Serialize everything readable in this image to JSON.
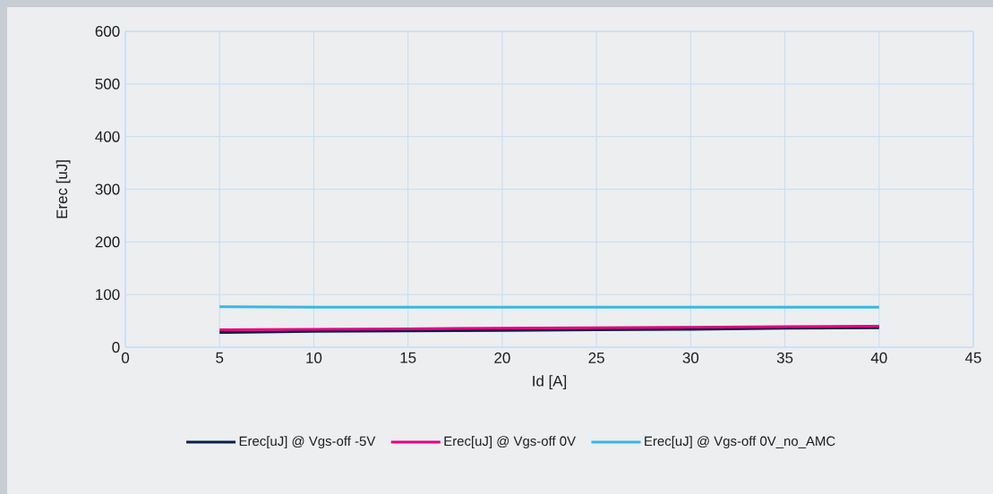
{
  "chart_data": {
    "type": "line",
    "xlabel": "Id [A]",
    "ylabel": "Erec [uJ]",
    "x": [
      5,
      10,
      15,
      20,
      25,
      30,
      35,
      40
    ],
    "series": [
      {
        "name": "Erec[uJ] @ Vgs-off -5V",
        "color": "#0b1e4a",
        "values": [
          28,
          30,
          31,
          32,
          33,
          34,
          36,
          37
        ]
      },
      {
        "name": "Erec[uJ] @ Vgs-off 0V",
        "color": "#e6007e",
        "values": [
          33,
          34,
          35,
          36,
          37,
          38,
          39,
          40
        ]
      },
      {
        "name": "Erec[uJ] @ Vgs-off 0V_no_AMC",
        "color": "#3cb4e6",
        "values": [
          77,
          76,
          76,
          76,
          76,
          76,
          76,
          76
        ]
      }
    ],
    "xlim": [
      0,
      45
    ],
    "xticks": [
      0,
      5,
      10,
      15,
      20,
      25,
      30,
      35,
      40,
      45
    ],
    "ylim": [
      0,
      600
    ],
    "yticks": [
      0,
      100,
      200,
      300,
      400,
      500,
      600
    ],
    "grid": true,
    "legend": "bottom",
    "marker": "none",
    "line_style": "solid"
  }
}
